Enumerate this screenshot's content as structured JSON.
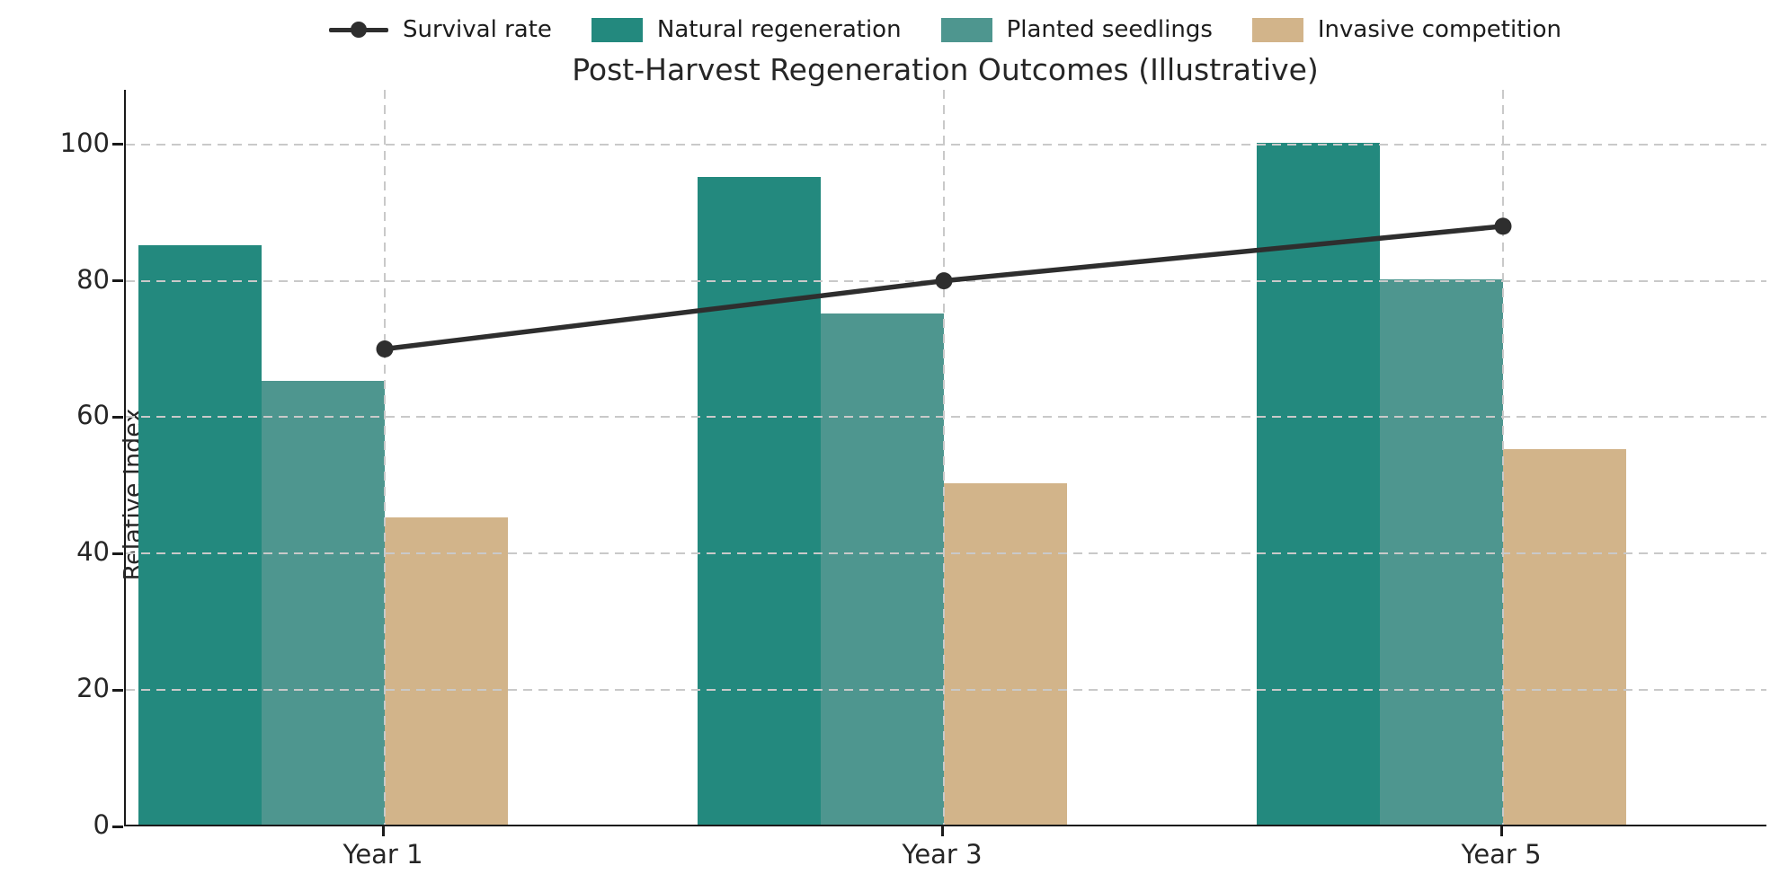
{
  "title": "Post-Harvest Regeneration Outcomes (Illustrative)",
  "legend": [
    {
      "label": "Survival rate",
      "type": "line",
      "color": "#2e2e2e"
    },
    {
      "label": "Natural regeneration",
      "type": "swatch",
      "color": "#23897e"
    },
    {
      "label": "Planted seedlings",
      "type": "swatch",
      "color": "#4e968f"
    },
    {
      "label": "Invasive competition",
      "type": "swatch",
      "color": "#d2b48a"
    }
  ],
  "chart_data": {
    "type": "bar",
    "title": "Post-Harvest Regeneration Outcomes (Illustrative)",
    "categories": [
      "Year 1",
      "Year 3",
      "Year 5"
    ],
    "series": [
      {
        "name": "Natural regeneration",
        "type": "bar",
        "color": "#23897e",
        "values": [
          85,
          95,
          100
        ]
      },
      {
        "name": "Planted seedlings",
        "type": "bar",
        "color": "#4e968f",
        "values": [
          65,
          75,
          80
        ]
      },
      {
        "name": "Invasive competition",
        "type": "bar",
        "color": "#d2b48a",
        "values": [
          45,
          50,
          55
        ]
      },
      {
        "name": "Survival rate",
        "type": "line",
        "color": "#2e2e2e",
        "values": [
          70,
          80,
          88
        ]
      }
    ],
    "xlabel": "",
    "ylabel": "Relative Index",
    "ylim": [
      0,
      108
    ],
    "yticks": [
      0,
      20,
      40,
      60,
      80,
      100
    ],
    "grid": true,
    "grid_style": "dashed",
    "legend_position": "top"
  },
  "colors": {
    "background": "#ffffff",
    "grid": "#c9c9c9",
    "axis": "#1a1a1a",
    "text": "#262626"
  }
}
